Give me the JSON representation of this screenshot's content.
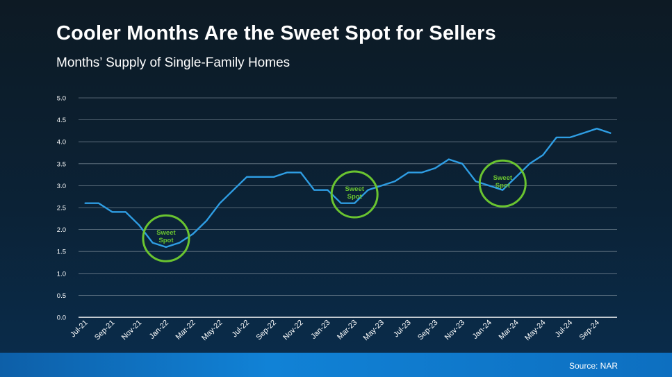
{
  "title": "Cooler Months Are the Sweet Spot for Sellers",
  "subtitle": "Months’ Supply of Single-Family Homes",
  "source": "Source: NAR",
  "colors": {
    "line": "#2f9ee4",
    "circle": "#6ac430",
    "grid": "#8a98a4",
    "text": "#ffffff"
  },
  "chart_data": {
    "type": "line",
    "title": "Cooler Months Are the Sweet Spot for Sellers",
    "subtitle": "Months’ Supply of Single-Family Homes",
    "xlabel": "",
    "ylabel": "",
    "ylim": [
      0,
      5
    ],
    "yticks": [
      "0.0",
      "0.5",
      "1.0",
      "1.5",
      "2.0",
      "2.5",
      "3.0",
      "3.5",
      "4.0",
      "4.5",
      "5.0"
    ],
    "xtick_labels": [
      "Jul-21",
      "Sep-21",
      "Nov-21",
      "Jan-22",
      "Mar-22",
      "May-22",
      "Jul-22",
      "Sep-22",
      "Nov-22",
      "Jan-23",
      "Mar-23",
      "May-23",
      "Jul-23",
      "Sep-23",
      "Nov-23",
      "Jan-24",
      "Mar-24",
      "May-24",
      "Jul-24",
      "Sep-24"
    ],
    "grid": true,
    "x": [
      "Jul-21",
      "Aug-21",
      "Sep-21",
      "Oct-21",
      "Nov-21",
      "Dec-21",
      "Jan-22",
      "Feb-22",
      "Mar-22",
      "Apr-22",
      "May-22",
      "Jun-22",
      "Jul-22",
      "Aug-22",
      "Sep-22",
      "Oct-22",
      "Nov-22",
      "Dec-22",
      "Jan-23",
      "Feb-23",
      "Mar-23",
      "Apr-23",
      "May-23",
      "Jun-23",
      "Jul-23",
      "Aug-23",
      "Sep-23",
      "Oct-23",
      "Nov-23",
      "Dec-23",
      "Jan-24",
      "Feb-24",
      "Mar-24",
      "Apr-24",
      "May-24",
      "Jun-24",
      "Jul-24",
      "Aug-24",
      "Sep-24",
      "Oct-24"
    ],
    "series": [
      {
        "values": [
          2.6,
          2.6,
          2.4,
          2.4,
          2.1,
          1.7,
          1.6,
          1.7,
          1.9,
          2.2,
          2.6,
          2.9,
          3.2,
          3.2,
          3.2,
          3.3,
          3.3,
          2.9,
          2.9,
          2.6,
          2.6,
          2.9,
          3.0,
          3.1,
          3.3,
          3.3,
          3.4,
          3.6,
          3.5,
          3.1,
          3.0,
          2.9,
          3.2,
          3.5,
          3.7,
          4.1,
          4.1,
          4.2,
          4.3,
          4.2
        ]
      }
    ],
    "annotations": [
      {
        "text": [
          "Sweet",
          "Spot"
        ],
        "x": "Jan-22",
        "y": 1.8
      },
      {
        "text": [
          "Sweet",
          "Spot"
        ],
        "x": "Mar-23",
        "y": 2.8
      },
      {
        "text": [
          "Sweet",
          "Spot"
        ],
        "x": "Feb-24",
        "y": 3.05
      }
    ]
  }
}
